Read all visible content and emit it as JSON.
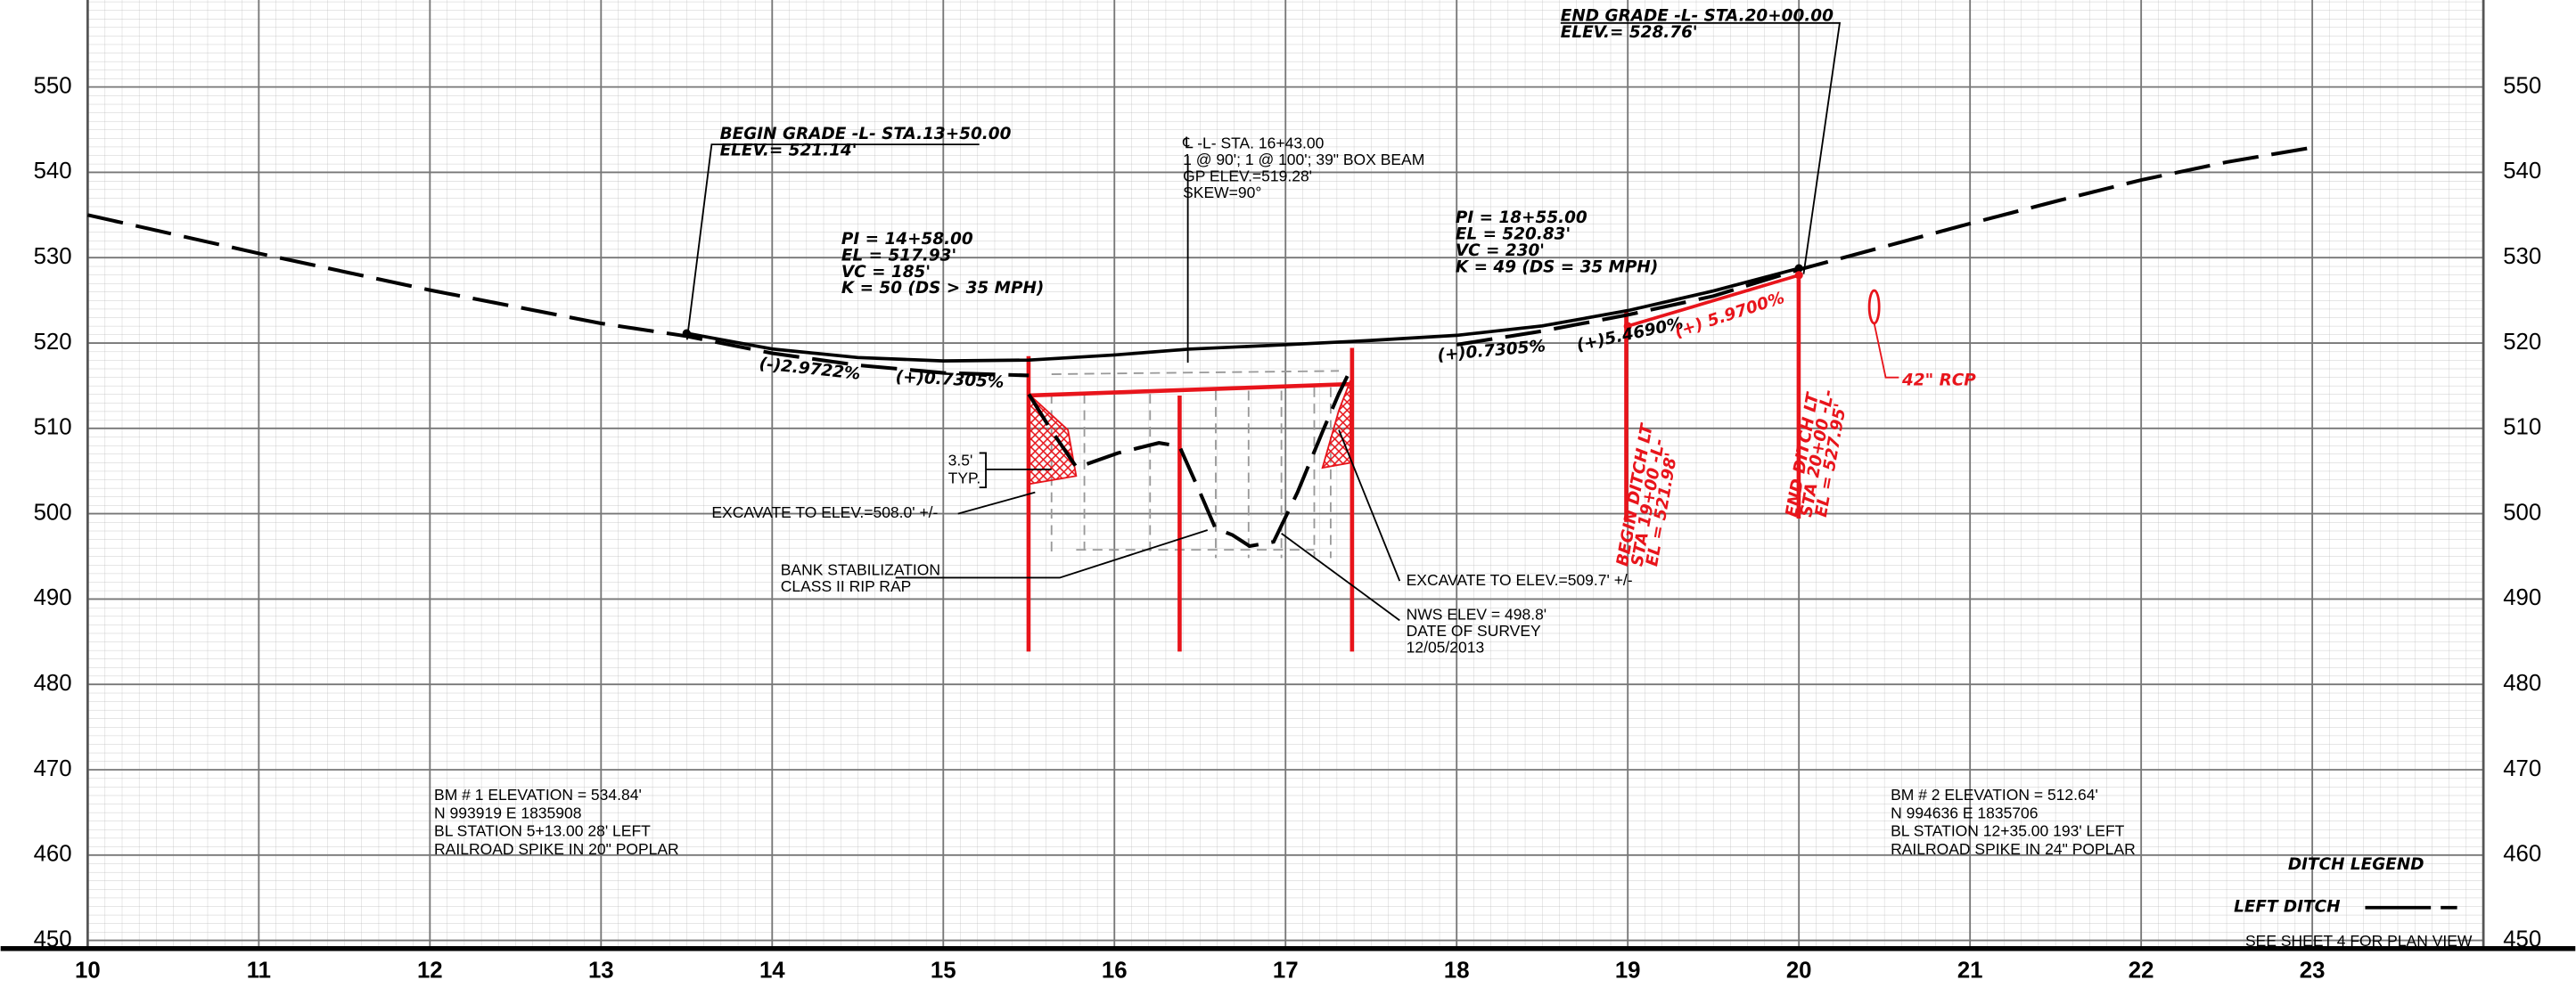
{
  "chart_data": {
    "type": "profile",
    "xlim": [
      10,
      24
    ],
    "ylim": [
      450,
      560
    ],
    "xticks": [
      10,
      11,
      12,
      13,
      14,
      15,
      16,
      17,
      18,
      19,
      20,
      21,
      22,
      23
    ],
    "yticks": [
      450,
      460,
      470,
      480,
      490,
      500,
      510,
      520,
      530,
      540,
      550
    ],
    "grid": true,
    "series": [
      {
        "color": "#000000",
        "dash": false,
        "x": [
          13.5,
          14,
          14.5,
          15,
          15.5,
          16,
          16.43,
          17,
          17.5,
          18,
          18.5,
          19,
          19.5,
          20
        ],
        "values": [
          521.14,
          519.3,
          518.3,
          517.9,
          518.0,
          518.6,
          519.28,
          519.8,
          520.3,
          520.9,
          522.0,
          523.8,
          526.1,
          528.76
        ]
      },
      {
        "name": "LEFT DITCH",
        "color": "#000000",
        "dash": true,
        "x": [
          10,
          11,
          12,
          13,
          13.5,
          14,
          14.5,
          15,
          15.5,
          17.4,
          18,
          18.5,
          19,
          19.5,
          20,
          20.5,
          21,
          21.5,
          22,
          22.5,
          23
        ],
        "values": [
          535.0,
          530.5,
          526.2,
          522.3,
          520.8,
          518.8,
          517.4,
          516.5,
          516.2,
          null,
          519.8,
          521.4,
          523.3,
          525.5,
          528.6,
          531.3,
          534.0,
          536.6,
          539.1,
          541.2,
          542.9
        ]
      },
      {
        "color": "#000000",
        "dash": true,
        "x": [
          15.5,
          15.63,
          15.78,
          16.02,
          16.26,
          16.38,
          16.5,
          16.59,
          16.69,
          16.79,
          16.93,
          17.07,
          17.22,
          17.31,
          17.38
        ],
        "values": [
          514.0,
          509.8,
          505.4,
          507.1,
          508.3,
          507.9,
          502.5,
          498.3,
          497.5,
          496.2,
          496.7,
          502.5,
          509.8,
          514.0,
          516.9
        ]
      },
      {
        "color": "#e8141b",
        "dash": false,
        "x": [
          19,
          20
        ],
        "values": [
          521.98,
          527.95
        ]
      }
    ],
    "grade_labels": [
      {
        "text": "(-)2.9722%",
        "color": "#000000"
      },
      {
        "text": "(+)0.7305%",
        "color": "#000000"
      },
      {
        "text": "(+)0.7305%",
        "color": "#000000"
      },
      {
        "text": "(+)5.4690%",
        "color": "#000000"
      },
      {
        "text": "(+) 5.9700%",
        "color": "#e8141b"
      }
    ],
    "annotations": [
      {
        "lines": [
          "BEGIN GRADE -L- STA.13+50.00",
          "ELEV.= 521.14'"
        ],
        "color": "#000000"
      },
      {
        "lines": [
          "END GRADE -L- STA.20+00.00",
          "ELEV.= 528.76'"
        ],
        "color": "#000000"
      },
      {
        "lines": [
          "PI = 14+58.00",
          "EL = 517.93'",
          "VC = 185'",
          "K = 50 (DS > 35 MPH)"
        ],
        "color": "#000000"
      },
      {
        "lines": [
          "PI = 18+55.00",
          "EL = 520.83'",
          "VC = 230'",
          "K = 49 (DS = 35 MPH)"
        ],
        "color": "#000000"
      },
      {
        "lines": [
          "℄ -L- STA. 16+43.00",
          "1 @ 90'; 1 @ 100'; 39\" BOX BEAM",
          "GP ELEV.=519.28'",
          "SKEW=90°"
        ],
        "color": "#000000"
      },
      {
        "lines": [
          "3.5'",
          "TYP."
        ],
        "color": "#000000"
      },
      {
        "lines": [
          "EXCAVATE TO  ELEV.=508.0' +/-"
        ],
        "color": "#000000"
      },
      {
        "lines": [
          "BANK STABILIZATION",
          "CLASS II RIP RAP"
        ],
        "color": "#000000"
      },
      {
        "lines": [
          "EXCAVATE TO  ELEV.=509.7' +/-"
        ],
        "color": "#000000"
      },
      {
        "lines": [
          "NWS ELEV =  498.8'",
          "DATE OF SURVEY",
          "12/05/2013"
        ],
        "color": "#000000"
      },
      {
        "lines": [
          "BM  # 1   ELEVATION  =  534.84'",
          "N  993919    E 1835908",
          "BL STATION  5+13.00   28' LEFT",
          "RAILROAD  SPIKE  IN  20\" POPLAR"
        ],
        "color": "#000000"
      },
      {
        "lines": [
          "BM  # 2   ELEVATION  =  512.64'",
          "N  994636    E 1835706",
          "BL STATION  12+35.00   193' LEFT",
          "RAILROAD  SPIKE  IN  24\" POPLAR"
        ],
        "color": "#000000"
      },
      {
        "lines": [
          "BEGIN DITCH LT",
          "STA 19+00 -L-",
          "EL = 521.98'"
        ],
        "color": "#e8141b"
      },
      {
        "lines": [
          "END DITCH LT",
          "STA 20+00 -L-",
          "EL = 527.95'"
        ],
        "color": "#e8141b"
      },
      {
        "lines": [
          "42\" RCP"
        ],
        "color": "#e8141b"
      },
      {
        "lines": [
          "SEE SHEET 4 FOR PLAN VIEW"
        ],
        "color": "#000000"
      }
    ],
    "legend_title": "DITCH LEGEND"
  }
}
